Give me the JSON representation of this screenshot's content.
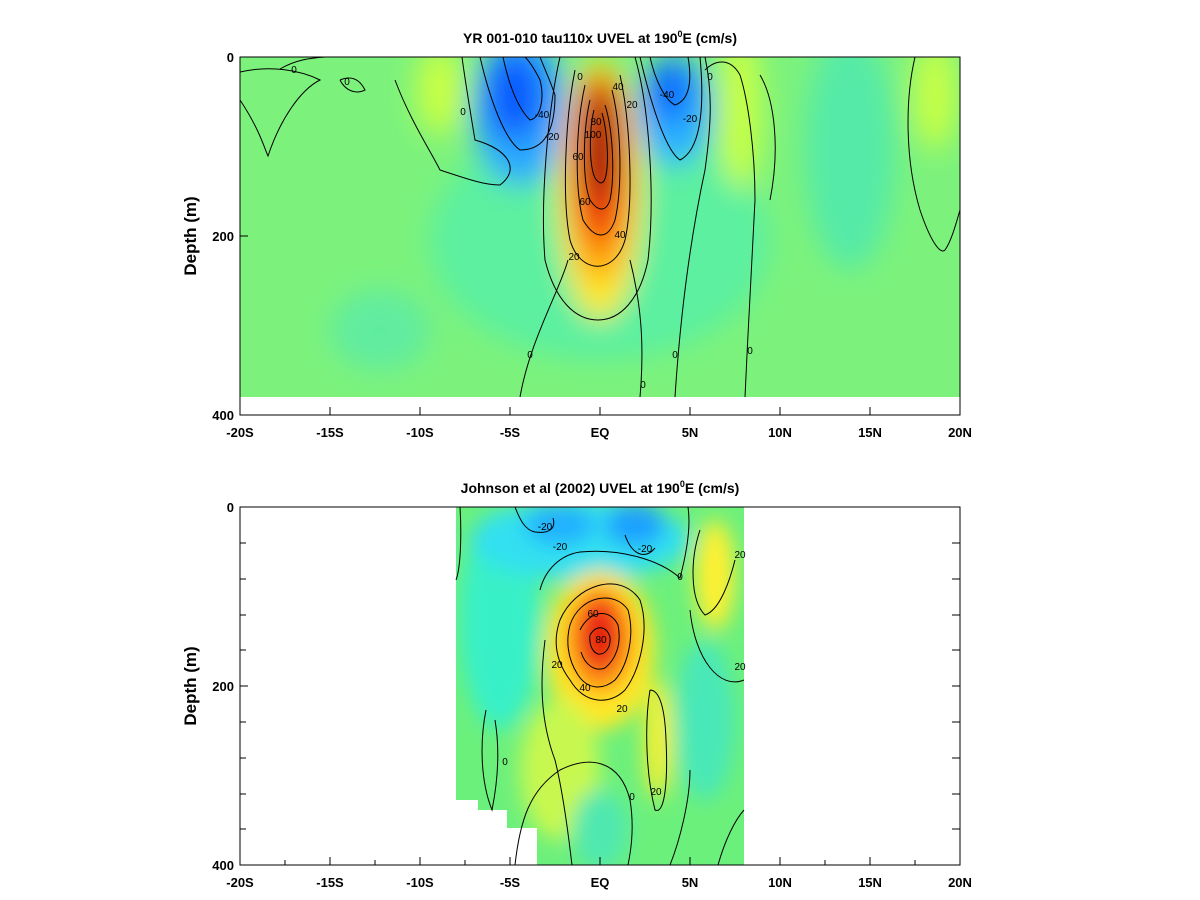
{
  "chart_data": [
    {
      "type": "heatmap",
      "title": "YR 001-010 tau110x UVEL at 190",
      "title_sup": "0",
      "title_tail": "E (cm/s)",
      "xlabel": "",
      "ylabel": "Depth (m)",
      "xlim": [
        -20,
        20
      ],
      "ylim": [
        0,
        400
      ],
      "y_inverted": true,
      "x_ticks": [
        -20,
        -15,
        -10,
        -5,
        0,
        5,
        10,
        15,
        20
      ],
      "x_tick_labels": [
        "-20S",
        "-15S",
        "-10S",
        "-5S",
        "EQ",
        "5N",
        "10N",
        "15N",
        "20N"
      ],
      "y_tick_labels": [
        "0",
        "200",
        "400"
      ],
      "y_tick_values": [
        0,
        200,
        400
      ],
      "data_depth_max": 380,
      "data_lat_range": [
        -20,
        20
      ],
      "grid": false,
      "colormap": "blue-cyan-green-yellow-red",
      "value_range": [
        -60,
        100
      ],
      "contour_interval": 20,
      "features": [
        {
          "lat": 0,
          "depth": 120,
          "value": 100
        },
        {
          "lat": -4.5,
          "depth": 50,
          "value": -45
        },
        {
          "lat": 4.5,
          "depth": 50,
          "value": -40
        },
        {
          "lat": -8.5,
          "depth": 40,
          "value": 15
        },
        {
          "lat": 8,
          "depth": 70,
          "value": 15
        },
        {
          "lat": 19,
          "depth": 40,
          "value": 15
        },
        {
          "lat": -14,
          "depth": 70,
          "value": 5
        },
        {
          "lat": -15,
          "depth": 330,
          "value": -10
        }
      ],
      "contour_labels": [
        "0",
        "0",
        "0",
        "0",
        "-40",
        "-20",
        "-40",
        "-20",
        "20",
        "40",
        "60",
        "80",
        "100",
        "60",
        "40",
        "20",
        "0",
        "0",
        "0",
        "0",
        "0"
      ]
    },
    {
      "type": "heatmap",
      "title": "Johnson et al (2002) UVEL at 190",
      "title_sup": "0",
      "title_tail": "E (cm/s)",
      "xlabel": "",
      "ylabel": "Depth (m)",
      "xlim": [
        -20,
        20
      ],
      "ylim": [
        0,
        400
      ],
      "y_inverted": true,
      "x_ticks": [
        -20,
        -15,
        -10,
        -5,
        0,
        5,
        10,
        15,
        20
      ],
      "x_tick_labels": [
        "-20S",
        "-15S",
        "-10S",
        "-5S",
        "EQ",
        "5N",
        "10N",
        "15N",
        "20N"
      ],
      "y_tick_labels": [
        "0",
        "200",
        "400"
      ],
      "y_tick_values": [
        0,
        200,
        400
      ],
      "data_lat_range": [
        -8,
        8
      ],
      "grid": false,
      "colormap": "blue-cyan-green-yellow-red",
      "value_range": [
        -60,
        100
      ],
      "contour_interval": 20,
      "features": [
        {
          "lat": 0,
          "depth": 150,
          "value": 80
        },
        {
          "lat": -1.5,
          "depth": 20,
          "value": -30
        },
        {
          "lat": 1.5,
          "depth": 15,
          "value": -30
        },
        {
          "lat": 6.5,
          "depth": 70,
          "value": 30
        },
        {
          "lat": 3.2,
          "depth": 260,
          "value": 25
        },
        {
          "lat": -2,
          "depth": 320,
          "value": 20
        },
        {
          "lat": -6,
          "depth": 280,
          "value": 0
        }
      ],
      "contour_labels": [
        "-20",
        "-20",
        "20",
        "0",
        "60",
        "80",
        "20",
        "40",
        "20",
        "20",
        "0",
        "20",
        "0",
        "-20"
      ]
    }
  ]
}
